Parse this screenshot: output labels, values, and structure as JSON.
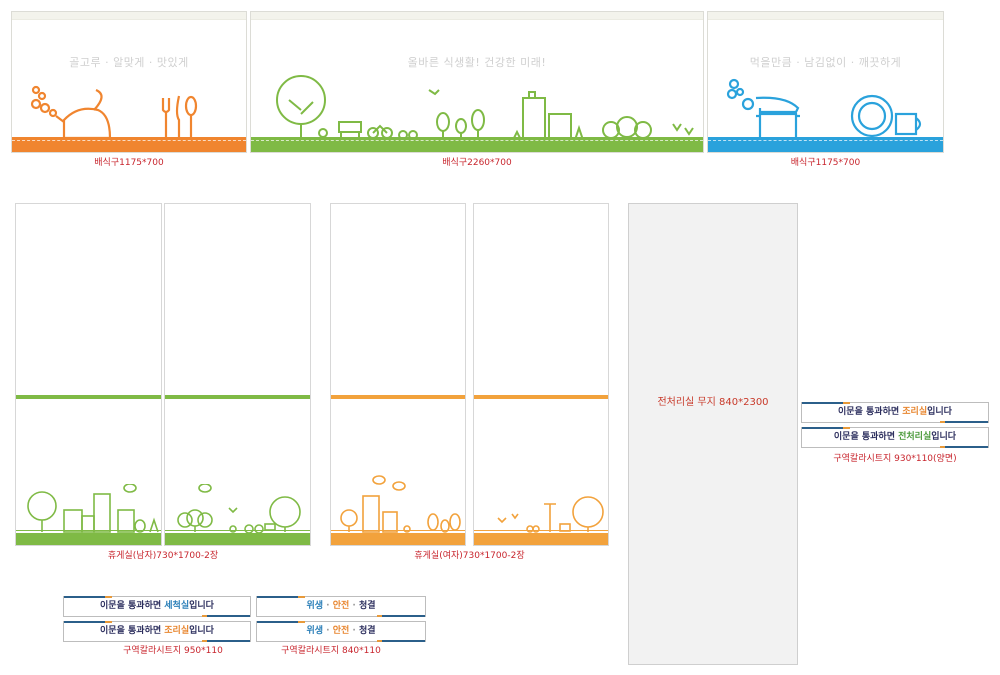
{
  "colors": {
    "orange": "#f0852f",
    "green": "#7fba45",
    "blue": "#2aa2dc",
    "restroom_orange": "#f2a23c",
    "caption_red": "#c8262e"
  },
  "top_panels": [
    {
      "slogan": "골고루 · 알맞게 · 맛있게",
      "caption": "배식구1175*700",
      "color": "#f0852f",
      "icons": [
        "teapot-icon",
        "cutlery-icon"
      ]
    },
    {
      "slogan": "올바른 식생활!   건강한 미래!",
      "caption": "배식구2260*700",
      "color": "#7fba45",
      "icons": [
        "tree-icon",
        "bench-icon",
        "bicycle-icon",
        "building-icon"
      ]
    },
    {
      "slogan": "먹을만큼 · 남김없이 · 깨끗하게",
      "caption": "배식구1175*700",
      "color": "#2aa2dc",
      "icons": [
        "pot-icon",
        "plate-icon",
        "cup-icon"
      ]
    }
  ],
  "restrooms": [
    {
      "caption": "휴게실(남자)730*1700-2장",
      "color": "#7fba45"
    },
    {
      "caption": "휴게실(여자)730*1700-2장",
      "color": "#f2a23c"
    }
  ],
  "prep_room": {
    "caption": "전처리실 무지 840*2300"
  },
  "right_banners": {
    "items": [
      {
        "prefix": "이문을 통과하면 ",
        "highlight": "조리실",
        "suffix": "입니다",
        "highlight_color": "#e8862f"
      },
      {
        "prefix": "이문을 통과하면 ",
        "highlight": "전처리실",
        "suffix": "입니다",
        "highlight_color": "#4a9a3a"
      }
    ],
    "caption": "구역칼라시트지 930*110(양면)"
  },
  "bottom_banners_left": {
    "items": [
      {
        "prefix": "이문을 통과하면 ",
        "highlight": "세척실",
        "suffix": "입니다",
        "highlight_color": "#2b7fb8"
      },
      {
        "prefix": "이문을 통과하면 ",
        "highlight": "조리실",
        "suffix": "입니다",
        "highlight_color": "#e8862f"
      }
    ],
    "caption": "구역칼라시트지 950*110"
  },
  "bottom_banners_right": {
    "items": [
      {
        "a": "위생",
        "sep1": " · ",
        "b": "안전",
        "sep2": " · ",
        "c": "청결"
      },
      {
        "a": "위생",
        "sep1": " · ",
        "b": "안전",
        "sep2": " · ",
        "c": "청결"
      }
    ],
    "caption": "구역칼라시트지 840*110"
  }
}
